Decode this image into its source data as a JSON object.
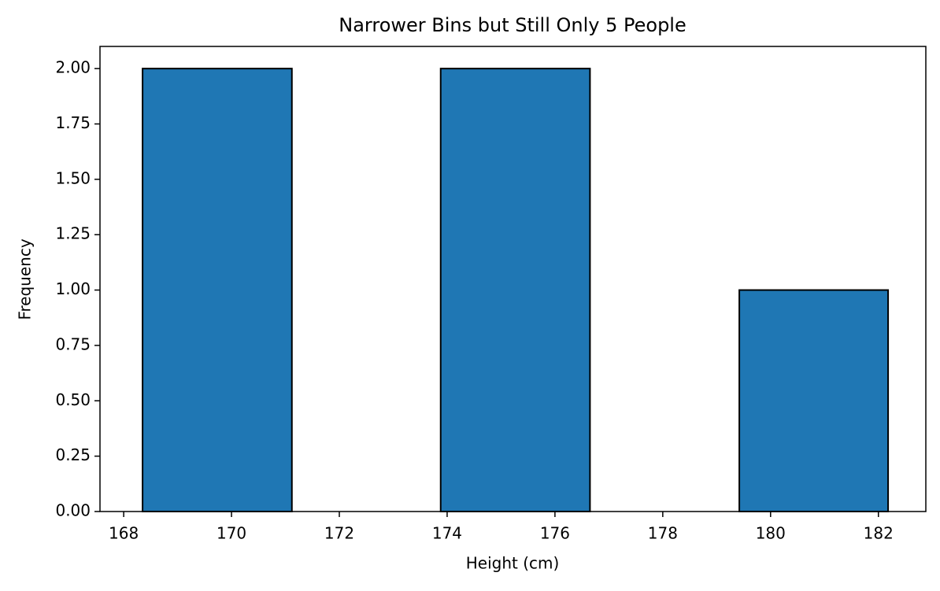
{
  "chart_data": {
    "type": "histogram",
    "title": "Narrower Bins but Still Only 5 People",
    "x_label": "Height (cm)",
    "y_label": "Frequency",
    "bins": [
      168.35,
      171.12,
      173.88,
      176.65,
      179.42,
      182.18
    ],
    "values": [
      2,
      0,
      2,
      0,
      1
    ],
    "color": "#1f77b4",
    "edgecolor": "#000000",
    "xlim": [
      167.56,
      182.88
    ],
    "xticks": [
      168,
      170,
      172,
      174,
      176,
      178,
      180,
      182
    ],
    "ylim": [
      0,
      2.1
    ],
    "yticks": [
      {
        "value": 0,
        "label": "0.00"
      },
      {
        "value": 0.25,
        "label": "0.25"
      },
      {
        "value": 0.5,
        "label": "0.50"
      },
      {
        "value": 0.75,
        "label": "0.75"
      },
      {
        "value": 1,
        "label": "1.00"
      },
      {
        "value": 1.25,
        "label": "1.25"
      },
      {
        "value": 1.5,
        "label": "1.50"
      },
      {
        "value": 1.75,
        "label": "1.75"
      },
      {
        "value": 2,
        "label": "2.00"
      }
    ],
    "grid": false
  }
}
